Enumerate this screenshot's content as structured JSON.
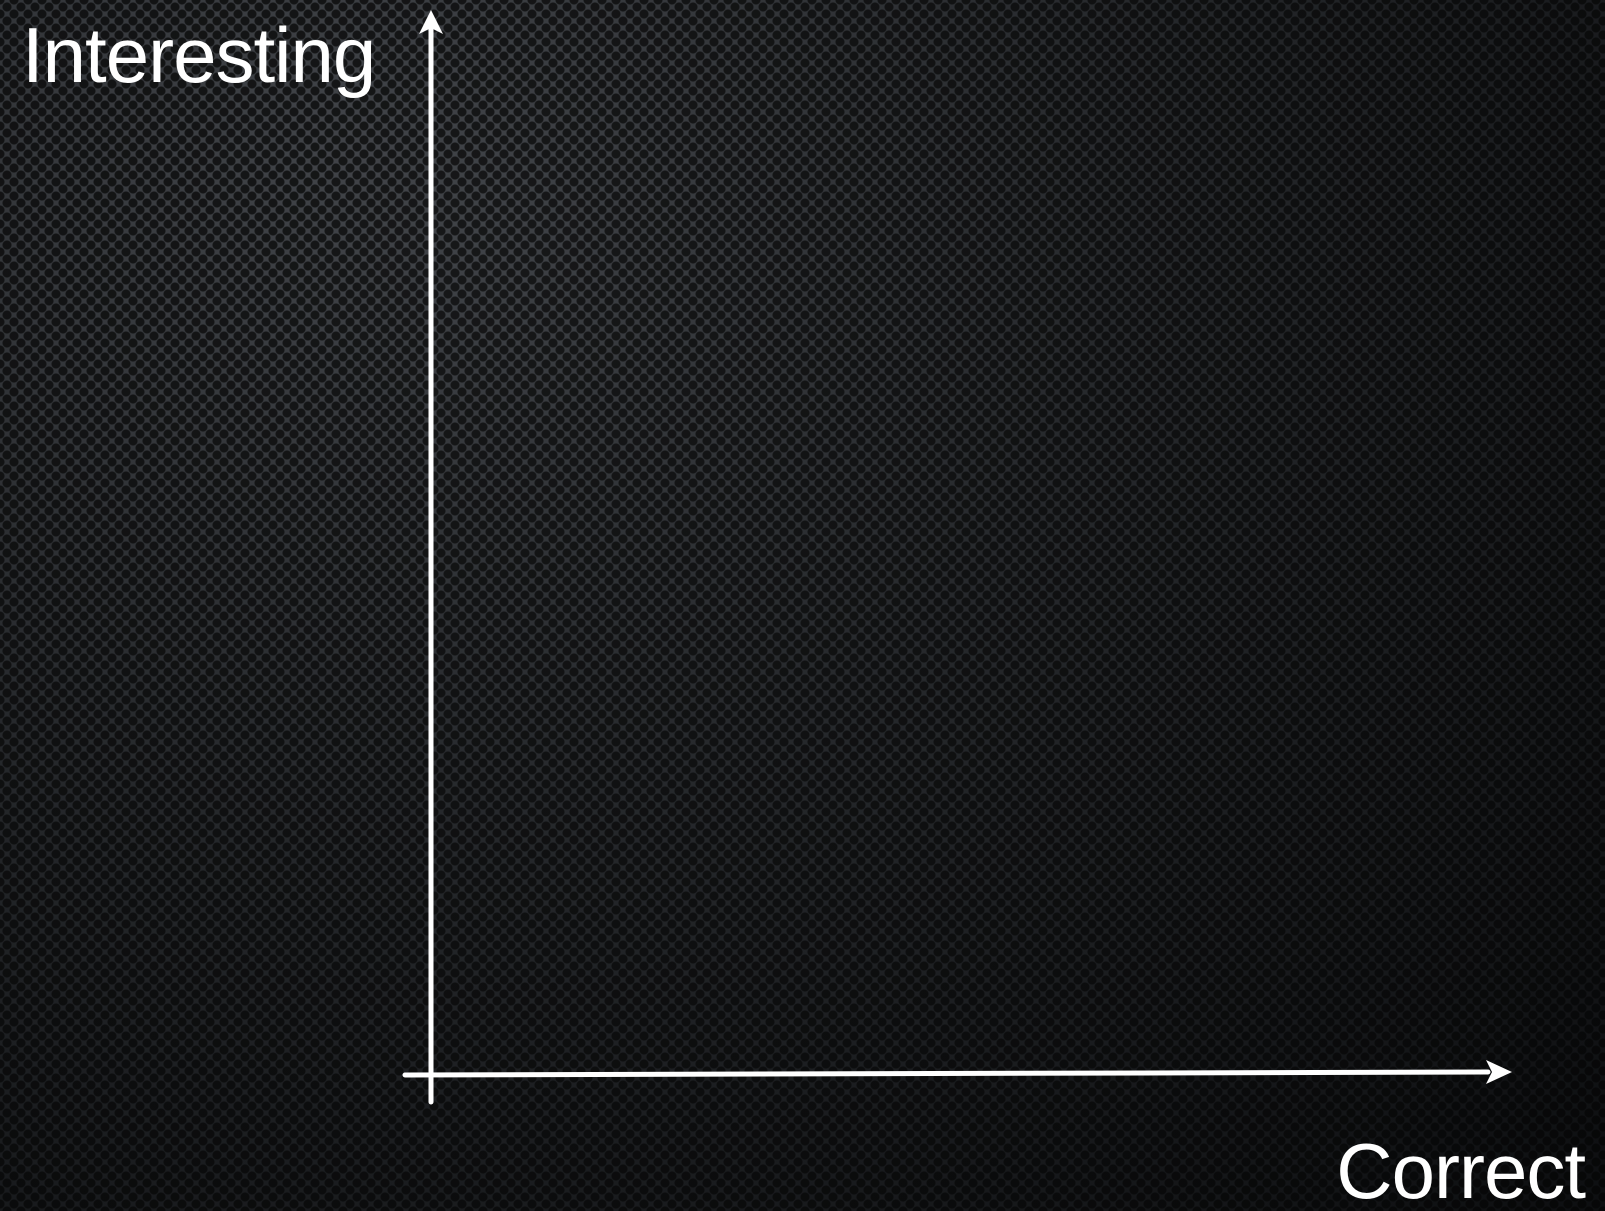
{
  "diagram": {
    "y_axis_label": "Interesting",
    "x_axis_label": "Correct",
    "axis_color": "#ffffff",
    "background_color": "#1b1d20"
  }
}
